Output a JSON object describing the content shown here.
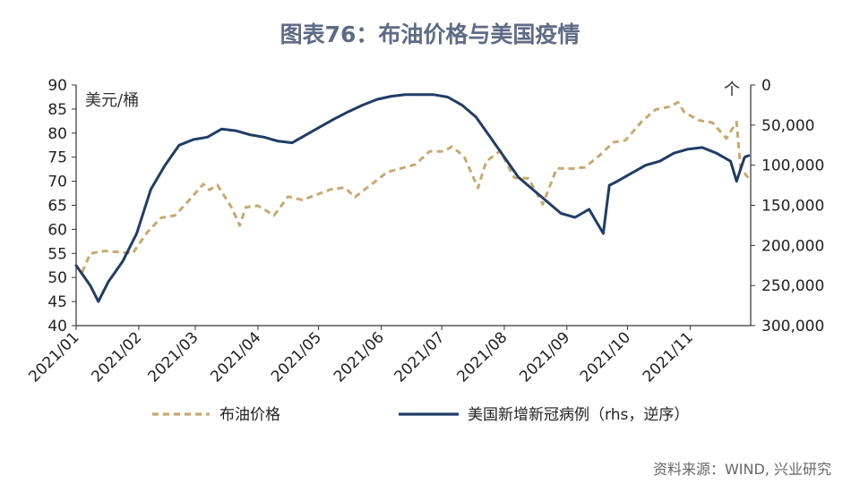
{
  "chart_data": {
    "type": "line",
    "title": "图表76：布油价格与美国疫情",
    "left_unit": "美元/桶",
    "right_unit": "个",
    "source": "资料来源：WIND, 兴业研究",
    "y_left": {
      "min": 40,
      "max": 90,
      "ticks": [
        "90",
        "85",
        "80",
        "75",
        "70",
        "65",
        "60",
        "55",
        "50",
        "45",
        "40"
      ]
    },
    "y_right": {
      "min": 0,
      "max": 300000,
      "reversed": true,
      "ticks": [
        "0",
        "50,000",
        "100,000",
        "150,000",
        "200,000",
        "250,000",
        "300,000"
      ]
    },
    "x_ticks": [
      "2021/01",
      "2021/02",
      "2021/03",
      "2021/04",
      "2021/05",
      "2021/06",
      "2021/07",
      "2021/08",
      "2021/09",
      "2021/10",
      "2021/11"
    ],
    "series": [
      {
        "name": "布油价格",
        "axis": "left",
        "color": "#c8a96e",
        "dash": true,
        "points": [
          [
            "2021/01/04",
            51.1
          ],
          [
            "2021/01/08",
            55.0
          ],
          [
            "2021/01/15",
            55.5
          ],
          [
            "2021/01/22",
            55.3
          ],
          [
            "2021/01/29",
            55.0
          ],
          [
            "2021/02/05",
            59.3
          ],
          [
            "2021/02/12",
            62.4
          ],
          [
            "2021/02/19",
            62.9
          ],
          [
            "2021/02/26",
            66.1
          ],
          [
            "2021/03/05",
            69.4
          ],
          [
            "2021/03/08",
            68.2
          ],
          [
            "2021/03/12",
            69.2
          ],
          [
            "2021/03/19",
            64.5
          ],
          [
            "2021/03/23",
            60.8
          ],
          [
            "2021/03/26",
            64.6
          ],
          [
            "2021/04/01",
            64.9
          ],
          [
            "2021/04/09",
            62.9
          ],
          [
            "2021/04/16",
            66.8
          ],
          [
            "2021/04/23",
            66.1
          ],
          [
            "2021/04/30",
            67.2
          ],
          [
            "2021/05/07",
            68.3
          ],
          [
            "2021/05/14",
            68.7
          ],
          [
            "2021/05/19",
            66.7
          ],
          [
            "2021/05/28",
            69.6
          ],
          [
            "2021/06/04",
            71.9
          ],
          [
            "2021/06/11",
            72.7
          ],
          [
            "2021/06/18",
            73.5
          ],
          [
            "2021/06/25",
            76.2
          ],
          [
            "2021/07/02",
            76.2
          ],
          [
            "2021/07/06",
            77.2
          ],
          [
            "2021/07/12",
            75.2
          ],
          [
            "2021/07/19",
            68.6
          ],
          [
            "2021/07/23",
            74.1
          ],
          [
            "2021/07/30",
            76.3
          ],
          [
            "2021/08/06",
            70.7
          ],
          [
            "2021/08/13",
            70.6
          ],
          [
            "2021/08/20",
            65.2
          ],
          [
            "2021/08/27",
            72.7
          ],
          [
            "2021/09/03",
            72.6
          ],
          [
            "2021/09/10",
            72.9
          ],
          [
            "2021/09/17",
            75.3
          ],
          [
            "2021/09/24",
            78.1
          ],
          [
            "2021/09/30",
            78.5
          ],
          [
            "2021/10/08",
            82.4
          ],
          [
            "2021/10/15",
            84.9
          ],
          [
            "2021/10/22",
            85.5
          ],
          [
            "2021/10/26",
            86.4
          ],
          [
            "2021/10/29",
            84.4
          ],
          [
            "2021/11/05",
            82.7
          ],
          [
            "2021/11/12",
            82.2
          ],
          [
            "2021/11/19",
            78.9
          ],
          [
            "2021/11/24",
            82.3
          ],
          [
            "2021/11/26",
            72.7
          ],
          [
            "2021/11/30",
            70.6
          ]
        ]
      },
      {
        "name": "美国新增新冠病例（rhs，逆序）",
        "axis": "right",
        "color": "#1f3d66",
        "dash": false,
        "points": [
          [
            "2021/01/01",
            225000
          ],
          [
            "2021/01/08",
            250000
          ],
          [
            "2021/01/12",
            270000
          ],
          [
            "2021/01/17",
            245000
          ],
          [
            "2021/01/24",
            220000
          ],
          [
            "2021/01/31",
            185000
          ],
          [
            "2021/02/07",
            130000
          ],
          [
            "2021/02/14",
            100000
          ],
          [
            "2021/02/21",
            75000
          ],
          [
            "2021/02/28",
            68000
          ],
          [
            "2021/03/07",
            65000
          ],
          [
            "2021/03/14",
            55000
          ],
          [
            "2021/03/21",
            57000
          ],
          [
            "2021/03/28",
            62000
          ],
          [
            "2021/04/04",
            65000
          ],
          [
            "2021/04/11",
            70000
          ],
          [
            "2021/04/18",
            72000
          ],
          [
            "2021/04/25",
            62000
          ],
          [
            "2021/05/02",
            52000
          ],
          [
            "2021/05/09",
            42000
          ],
          [
            "2021/05/16",
            33000
          ],
          [
            "2021/05/23",
            25000
          ],
          [
            "2021/05/30",
            18000
          ],
          [
            "2021/06/06",
            14000
          ],
          [
            "2021/06/13",
            12000
          ],
          [
            "2021/06/20",
            12000
          ],
          [
            "2021/06/27",
            12000
          ],
          [
            "2021/07/04",
            15000
          ],
          [
            "2021/07/11",
            25000
          ],
          [
            "2021/07/18",
            40000
          ],
          [
            "2021/07/25",
            65000
          ],
          [
            "2021/08/01",
            90000
          ],
          [
            "2021/08/08",
            115000
          ],
          [
            "2021/08/15",
            130000
          ],
          [
            "2021/08/22",
            145000
          ],
          [
            "2021/08/29",
            160000
          ],
          [
            "2021/09/05",
            165000
          ],
          [
            "2021/09/12",
            155000
          ],
          [
            "2021/09/19",
            185000
          ],
          [
            "2021/09/22",
            125000
          ],
          [
            "2021/09/26",
            120000
          ],
          [
            "2021/10/03",
            110000
          ],
          [
            "2021/10/10",
            100000
          ],
          [
            "2021/10/17",
            95000
          ],
          [
            "2021/10/24",
            85000
          ],
          [
            "2021/10/31",
            80000
          ],
          [
            "2021/11/07",
            78000
          ],
          [
            "2021/11/14",
            85000
          ],
          [
            "2021/11/21",
            95000
          ],
          [
            "2021/11/24",
            120000
          ],
          [
            "2021/11/28",
            90000
          ],
          [
            "2021/11/30",
            88000
          ]
        ]
      }
    ]
  }
}
